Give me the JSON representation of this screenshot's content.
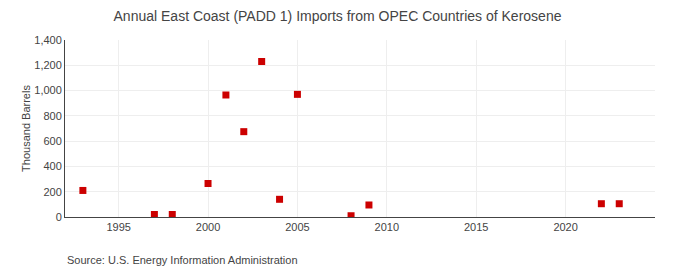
{
  "chart_data": {
    "type": "scatter",
    "title": "Annual East Coast (PADD 1) Imports from OPEC Countries of Kerosene",
    "ylabel": "Thousand Barrels",
    "annotations": [
      "Source: U.S. Energy Information Administration"
    ],
    "x": [
      1993,
      1997,
      1998,
      2000,
      2001,
      2002,
      2003,
      2004,
      2005,
      2008,
      2009,
      2022,
      2023
    ],
    "values": [
      210,
      20,
      20,
      265,
      965,
      675,
      1230,
      140,
      970,
      10,
      95,
      105,
      105
    ],
    "color": "#cc0000",
    "marker": "square",
    "xlim": [
      1992,
      2025
    ],
    "ylim": [
      0,
      1400
    ],
    "xticks": [
      1995,
      2000,
      2005,
      2010,
      2015,
      2020
    ],
    "yticks": [
      0,
      200,
      400,
      600,
      800,
      {
        "value": 1000,
        "label": "1,000"
      },
      {
        "value": 1200,
        "label": "1,200"
      },
      {
        "value": 1400,
        "label": "1,400"
      }
    ],
    "grid": true
  }
}
